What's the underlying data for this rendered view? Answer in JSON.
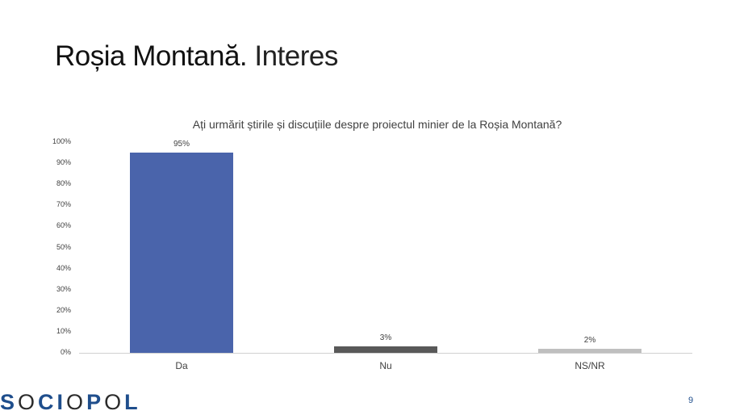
{
  "slide": {
    "title_bold": "Roșia Montană.",
    "title_light": "Interes",
    "page_number": "9",
    "logo": {
      "letters": [
        "S",
        "O",
        "C",
        "I",
        "O",
        "P",
        "O",
        "L"
      ],
      "brand_color": "#1f4e8c"
    }
  },
  "chart_data": {
    "type": "bar",
    "title": "Ați urmărit știrile și discuțiile despre proiectul minier de la Roșia Montană?",
    "categories": [
      "Da",
      "Nu",
      "NS/NR"
    ],
    "values": [
      95,
      3,
      2
    ],
    "value_labels": [
      "95%",
      "3%",
      "2%"
    ],
    "colors": [
      "#4a64ab",
      "#595959",
      "#bfbfbf"
    ],
    "xlabel": "",
    "ylabel": "",
    "ylim": [
      0,
      100
    ],
    "y_ticks": [
      "0%",
      "10%",
      "20%",
      "30%",
      "40%",
      "50%",
      "60%",
      "70%",
      "80%",
      "90%",
      "100%"
    ],
    "grid": false,
    "legend": "none"
  }
}
